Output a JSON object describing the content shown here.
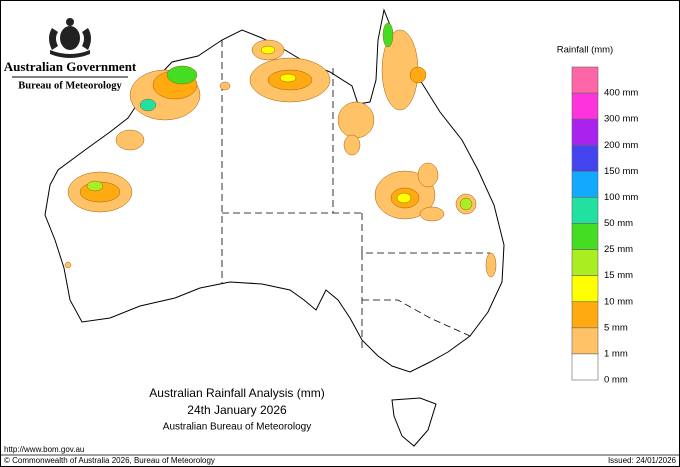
{
  "header": {
    "government": "Australian Government",
    "bureau": "Bureau of Meteorology"
  },
  "legend": {
    "title": "Rainfall (mm)",
    "colors": [
      "#ff66a8",
      "#ff33dd",
      "#aa22ee",
      "#4444ee",
      "#11aaff",
      "#22e0a0",
      "#44dd22",
      "#aaee22",
      "#ffff00",
      "#ffaa11",
      "#ffc266",
      "#ffffff"
    ],
    "labels": [
      "400 mm",
      "300 mm",
      "200 mm",
      "150 mm",
      "100 mm",
      "50 mm",
      "25 mm",
      "15 mm",
      "10 mm",
      "5 mm",
      "1 mm",
      "0 mm"
    ]
  },
  "caption": {
    "title": "Australian Rainfall Analysis (mm)",
    "date": "24th January 2026",
    "org": "Australian Bureau of Meteorology"
  },
  "footer": {
    "url": "http://www.bom.gov.au",
    "copyright": "© Commonwealth of Australia 2026, Bureau of Meteorology",
    "issued": "Issued: 24/01/2026"
  }
}
